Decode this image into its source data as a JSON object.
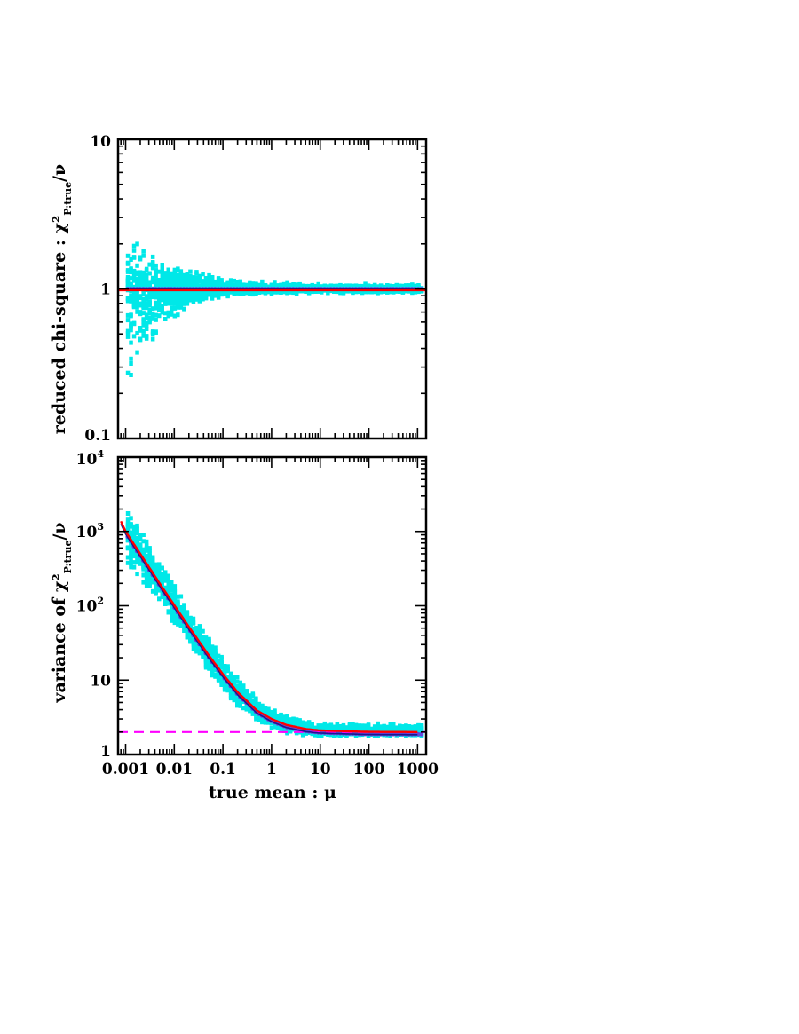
{
  "chart_data": [
    {
      "type": "scatter",
      "panel": "top",
      "ylabel": "reduced chi-square : χ²",
      "ylabel_sub": "P:true",
      "ylabel_tail": "/ν",
      "xscale": "log",
      "yscale": "log",
      "xlim": [
        0.0007,
        1500
      ],
      "ylim": [
        0.1,
        10
      ],
      "yticks": [
        {
          "value": 0.1,
          "label": "0.1"
        },
        {
          "value": 1,
          "label": "1"
        },
        {
          "value": 10,
          "label": "10"
        }
      ],
      "reference_line": {
        "y": 1,
        "color": "#ff0000"
      },
      "median_value": 1.0,
      "scatter_envelope": {
        "color": "#00e8e8",
        "x": [
          0.001,
          0.002,
          0.005,
          0.01,
          0.02,
          0.05,
          0.1,
          0.3,
          1,
          3,
          10,
          1000
        ],
        "upper": [
          2.4,
          1.9,
          1.6,
          1.45,
          1.35,
          1.22,
          1.15,
          1.1,
          1.08,
          1.07,
          1.06,
          1.06
        ],
        "lower": [
          0.2,
          0.32,
          0.52,
          0.65,
          0.74,
          0.84,
          0.88,
          0.92,
          0.93,
          0.94,
          0.95,
          0.95
        ]
      }
    },
    {
      "type": "scatter",
      "panel": "bottom",
      "xlabel": "true mean : μ",
      "ylabel": "variance of χ²",
      "ylabel_sub": "P:true",
      "ylabel_tail": "/ν",
      "xscale": "log",
      "yscale": "log",
      "xlim": [
        0.0007,
        1500
      ],
      "ylim": [
        1,
        10000
      ],
      "xticks": [
        {
          "value": 0.001,
          "label": "0.001"
        },
        {
          "value": 0.01,
          "label": "0.01"
        },
        {
          "value": 0.1,
          "label": "0.1"
        },
        {
          "value": 1,
          "label": "1"
        },
        {
          "value": 10,
          "label": "10"
        },
        {
          "value": 100,
          "label": "100"
        },
        {
          "value": 1000,
          "label": "1000"
        }
      ],
      "yticks": [
        {
          "value": 1,
          "label": "1",
          "exp": ""
        },
        {
          "value": 10,
          "label": "10",
          "exp": ""
        },
        {
          "value": 100,
          "label": "10",
          "exp": "2"
        },
        {
          "value": 1000,
          "label": "10",
          "exp": "3"
        },
        {
          "value": 10000,
          "label": "10",
          "exp": "4"
        }
      ],
      "asymptote": {
        "y": 2,
        "color": "#ff00ff",
        "style": "dashed"
      },
      "theory_curve": {
        "color": "#ff0000",
        "x": [
          0.0008,
          0.001,
          0.002,
          0.005,
          0.01,
          0.02,
          0.05,
          0.1,
          0.2,
          0.5,
          1,
          2,
          5,
          10,
          100,
          1000
        ],
        "y": [
          1370,
          1000,
          500,
          200,
          102,
          52,
          22,
          12,
          6.9,
          3.9,
          3.0,
          2.5,
          2.2,
          2.1,
          2.01,
          2.0
        ]
      },
      "scatter_envelope": {
        "color": "#00e8e8",
        "x": [
          0.001,
          0.002,
          0.005,
          0.01,
          0.02,
          0.05,
          0.1,
          0.2,
          0.5,
          1,
          2,
          5,
          10,
          100,
          1000
        ],
        "upper": [
          3300,
          1100,
          380,
          185,
          85,
          36,
          19,
          10.5,
          5.6,
          4.0,
          3.3,
          2.8,
          2.6,
          2.55,
          2.55
        ],
        "lower": [
          350,
          230,
          105,
          55,
          30,
          13,
          7.5,
          4.5,
          2.8,
          2.25,
          1.95,
          1.85,
          1.8,
          1.8,
          1.8
        ]
      }
    }
  ]
}
